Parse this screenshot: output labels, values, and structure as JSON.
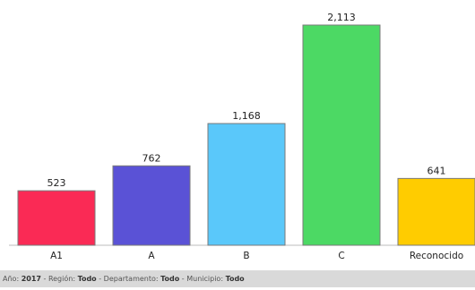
{
  "chart_data": {
    "type": "bar",
    "categories": [
      "A1",
      "A",
      "B",
      "C",
      "Reconocido"
    ],
    "values": [
      523,
      762,
      1168,
      2113,
      641
    ],
    "value_labels": [
      "523",
      "762",
      "1,168",
      "2,113",
      "641"
    ],
    "colors": [
      "#fa2a55",
      "#5a52d6",
      "#5ac8fa",
      "#4cd964",
      "#ffcc00"
    ],
    "title": "",
    "xlabel": "",
    "ylabel": "",
    "grid": false,
    "legend": "none"
  },
  "filters": {
    "year_label": "Año: ",
    "year_value": "2017",
    "sep1": " - ",
    "region_label": "Región: ",
    "region_value": "Todo",
    "sep2": " - ",
    "department_label": "Departamento: ",
    "department_value": "Todo",
    "sep3": " - ",
    "municipality_label": "Municipio: ",
    "municipality_value": "Todo"
  }
}
